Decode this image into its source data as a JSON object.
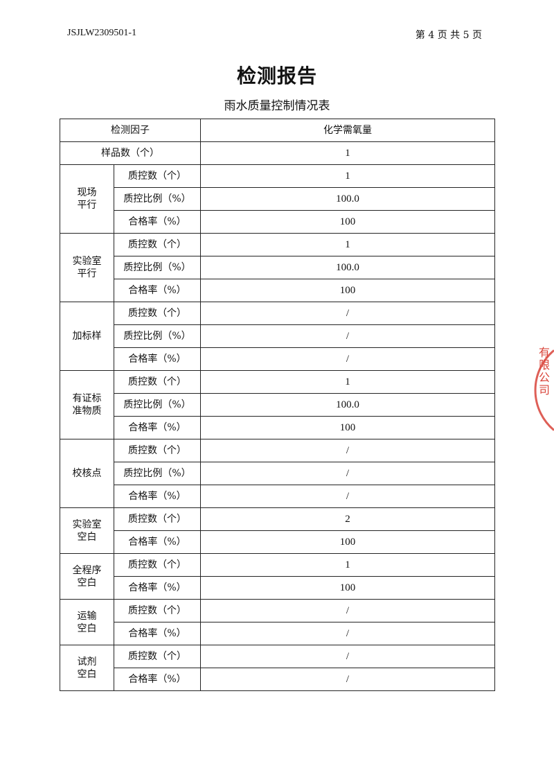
{
  "header": {
    "doc_id": "JSJLW2309501-1",
    "page_info": "第 4 页 共 5 页"
  },
  "title": "检测报告",
  "subtitle": "雨水质量控制情况表",
  "table": {
    "header": {
      "factor_label": "检测因子",
      "analyte": "化学需氧量"
    },
    "sample_count": {
      "label": "样品数（个）",
      "value": "1"
    },
    "groups": [
      {
        "name": "现场\n平行",
        "rows": [
          {
            "label": "质控数（个）",
            "value": "1"
          },
          {
            "label": "质控比例（%）",
            "value": "100.0"
          },
          {
            "label": "合格率（%）",
            "value": "100"
          }
        ]
      },
      {
        "name": "实验室\n平行",
        "rows": [
          {
            "label": "质控数（个）",
            "value": "1"
          },
          {
            "label": "质控比例（%）",
            "value": "100.0"
          },
          {
            "label": "合格率（%）",
            "value": "100"
          }
        ]
      },
      {
        "name": "加标样",
        "rows": [
          {
            "label": "质控数（个）",
            "value": "/"
          },
          {
            "label": "质控比例（%）",
            "value": "/"
          },
          {
            "label": "合格率（%）",
            "value": "/"
          }
        ]
      },
      {
        "name": "有证标\n准物质",
        "rows": [
          {
            "label": "质控数（个）",
            "value": "1"
          },
          {
            "label": "质控比例（%）",
            "value": "100.0"
          },
          {
            "label": "合格率（%）",
            "value": "100"
          }
        ]
      },
      {
        "name": "校核点",
        "rows": [
          {
            "label": "质控数（个）",
            "value": "/"
          },
          {
            "label": "质控比例（%）",
            "value": "/"
          },
          {
            "label": "合格率（%）",
            "value": "/"
          }
        ]
      },
      {
        "name": "实验室\n空白",
        "rows": [
          {
            "label": "质控数（个）",
            "value": "2"
          },
          {
            "label": "合格率（%）",
            "value": "100"
          }
        ]
      },
      {
        "name": "全程序\n空白",
        "rows": [
          {
            "label": "质控数（个）",
            "value": "1"
          },
          {
            "label": "合格率（%）",
            "value": "100"
          }
        ]
      },
      {
        "name": "运输\n空白",
        "rows": [
          {
            "label": "质控数（个）",
            "value": "/"
          },
          {
            "label": "合格率（%）",
            "value": "/"
          }
        ]
      },
      {
        "name": "试剂\n空白",
        "rows": [
          {
            "label": "质控数（个）",
            "value": "/"
          },
          {
            "label": "合格率（%）",
            "value": "/"
          }
        ]
      }
    ]
  },
  "stamp": {
    "text": "有限公司 章",
    "color": "#d9443a"
  }
}
